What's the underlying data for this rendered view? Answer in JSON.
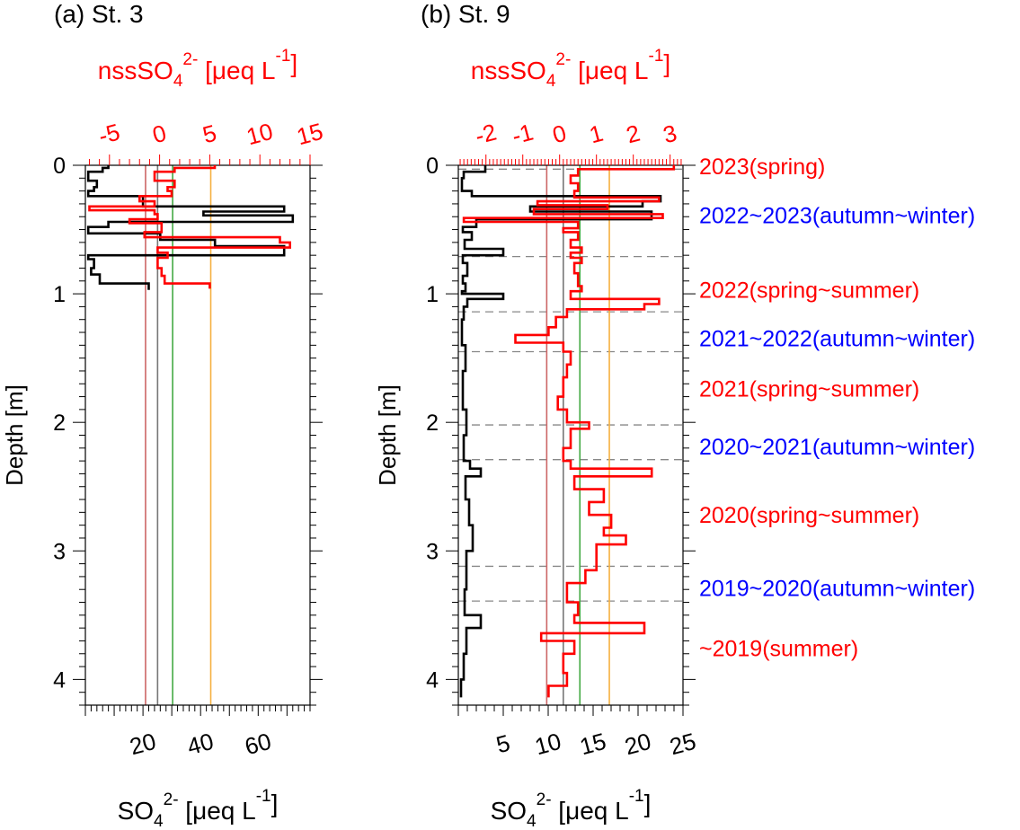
{
  "panels": [
    {
      "title": "(a) St. 3",
      "top_axis": {
        "label_main": "nssSO",
        "label_sub": "4",
        "label_sup": "2-",
        "label_unit": "[μeq L",
        "label_unit_sup": "-1",
        "label_close": "]",
        "ticks": [
          "-5",
          "0",
          "5",
          "10",
          "15"
        ],
        "range": [
          -7.4,
          15.0
        ]
      },
      "bottom_axis": {
        "label_main": "SO",
        "label_sub": "4",
        "label_sup": "2-",
        "label_unit": "[μeq L",
        "label_unit_sup": "-1",
        "label_close": "]",
        "ticks": [
          "20",
          "40",
          "60"
        ],
        "range": [
          0,
          78
        ]
      },
      "y_axis": {
        "label": "Depth [m]",
        "ticks": [
          "0",
          "1",
          "2",
          "3",
          "4"
        ],
        "range": [
          0,
          4.2
        ]
      }
    },
    {
      "title": "(b) St. 9",
      "top_axis": {
        "label_main": "nssSO",
        "label_sub": "4",
        "label_sup": "2-",
        "label_unit": "[μeq L",
        "label_unit_sup": "-1",
        "label_close": "]",
        "ticks": [
          "-2",
          "-1",
          "0",
          "1",
          "2",
          "3"
        ],
        "range": [
          -2.75,
          3.35
        ]
      },
      "bottom_axis": {
        "label_main": "SO",
        "label_sub": "4",
        "label_sup": "2-",
        "label_unit": "[μeq L",
        "label_unit_sup": "-1",
        "label_close": "]",
        "ticks": [
          "5",
          "10",
          "15",
          "20",
          "25"
        ],
        "range": [
          0,
          25
        ]
      },
      "y_axis": {
        "label": "Depth [m]",
        "ticks": [
          "0",
          "1",
          "2",
          "3",
          "4"
        ],
        "range": [
          0,
          4.2
        ]
      }
    }
  ],
  "season_labels": [
    {
      "text": "2023(spring)",
      "depth": 0.0,
      "color": "#ff0000"
    },
    {
      "text": "2022~2023(autumn~winter)",
      "depth": 0.38,
      "color": "#0000ff"
    },
    {
      "text": "2022(spring~summer)",
      "depth": 0.96,
      "color": "#ff0000"
    },
    {
      "text": "2021~2022(autumn~winter)",
      "depth": 1.34,
      "color": "#0000ff"
    },
    {
      "text": "2021(spring~summer)",
      "depth": 1.73,
      "color": "#ff0000"
    },
    {
      "text": "2020~2021(autumn~winter)",
      "depth": 2.18,
      "color": "#0000ff"
    },
    {
      "text": "2020(spring~summer)",
      "depth": 2.71,
      "color": "#ff0000"
    },
    {
      "text": "2019~2020(autumn~winter)",
      "depth": 3.28,
      "color": "#0000ff"
    },
    {
      "text": "~2019(summer)",
      "depth": 3.75,
      "color": "#ff0000"
    }
  ],
  "colors": {
    "so4": "#000000",
    "nss": "#ff0000",
    "ref_red": "#cc6666",
    "ref_gray": "#777777",
    "ref_green": "#44aa44",
    "ref_orange": "#f5b040",
    "dash": "#888888"
  },
  "chart_data": [
    {
      "type": "line",
      "title": "(a) St. 3",
      "ylabel": "Depth [m]",
      "ylim": [
        0,
        4.2
      ],
      "series": [
        {
          "name": "SO4 2-",
          "axis": "bottom",
          "steps": [
            [
              0,
              0.02,
              8
            ],
            [
              0.02,
              0.05,
              6
            ],
            [
              0.05,
              0.12,
              1
            ],
            [
              0.12,
              0.17,
              4
            ],
            [
              0.17,
              0.2,
              3
            ],
            [
              0.2,
              0.24,
              1
            ],
            [
              0.24,
              0.32,
              20
            ],
            [
              0.32,
              0.36,
              69
            ],
            [
              0.36,
              0.39,
              41
            ],
            [
              0.39,
              0.44,
              72
            ],
            [
              0.44,
              0.48,
              8
            ],
            [
              0.48,
              0.53,
              1
            ],
            [
              0.53,
              0.58,
              26
            ],
            [
              0.58,
              0.63,
              45
            ],
            [
              0.63,
              0.7,
              69
            ],
            [
              0.7,
              0.73,
              1
            ],
            [
              0.73,
              0.8,
              3
            ],
            [
              0.8,
              0.85,
              2
            ],
            [
              0.85,
              0.92,
              5
            ],
            [
              0.92,
              0.97,
              22
            ]
          ]
        },
        {
          "name": "nssSO4 2-",
          "axis": "top",
          "steps": [
            [
              0,
              0.02,
              5.5
            ],
            [
              0.02,
              0.05,
              1.5
            ],
            [
              0.05,
              0.12,
              -0.5
            ],
            [
              0.12,
              0.17,
              1.5
            ],
            [
              0.17,
              0.2,
              0.8
            ],
            [
              0.2,
              0.24,
              1.2
            ],
            [
              0.24,
              0.28,
              -2
            ],
            [
              0.28,
              0.32,
              -0.5
            ],
            [
              0.32,
              0.35,
              -7
            ],
            [
              0.35,
              0.38,
              -0.5
            ],
            [
              0.38,
              0.42,
              -0.2
            ],
            [
              0.42,
              0.45,
              -3
            ],
            [
              0.45,
              0.52,
              0.2
            ],
            [
              0.52,
              0.56,
              -1.5
            ],
            [
              0.56,
              0.6,
              12
            ],
            [
              0.6,
              0.64,
              13
            ],
            [
              0.64,
              0.68,
              -0.2
            ],
            [
              0.68,
              0.72,
              0.8
            ],
            [
              0.72,
              0.8,
              -0.2
            ],
            [
              0.8,
              0.86,
              0.2
            ],
            [
              0.86,
              0.92,
              0.5
            ],
            [
              0.92,
              0.96,
              5
            ]
          ]
        }
      ],
      "reference_lines": [
        {
          "axis": "top",
          "value": -1.4,
          "color": "#cc6666"
        },
        {
          "axis": "top",
          "value": -0.2,
          "color": "#777777"
        },
        {
          "axis": "top",
          "value": 1.3,
          "color": "#44aa44"
        },
        {
          "axis": "top",
          "value": 5.1,
          "color": "#f5b040"
        }
      ]
    },
    {
      "type": "line",
      "title": "(b) St. 9",
      "ylabel": "Depth [m]",
      "ylim": [
        0,
        4.2
      ],
      "dashed_boundaries": [
        0.03,
        0.71,
        1.14,
        1.45,
        2.02,
        2.29,
        3.12,
        3.39
      ],
      "series": [
        {
          "name": "SO4 2-",
          "axis": "bottom",
          "steps": [
            [
              0,
              0.05,
              3
            ],
            [
              0.05,
              0.1,
              0.6
            ],
            [
              0.1,
              0.2,
              0.4
            ],
            [
              0.2,
              0.24,
              1.5
            ],
            [
              0.24,
              0.28,
              22.5
            ],
            [
              0.28,
              0.32,
              20.5
            ],
            [
              0.32,
              0.36,
              8
            ],
            [
              0.36,
              0.42,
              21.5
            ],
            [
              0.42,
              0.48,
              2
            ],
            [
              0.48,
              0.52,
              0.5
            ],
            [
              0.52,
              0.58,
              1.5
            ],
            [
              0.58,
              0.65,
              0.7
            ],
            [
              0.65,
              0.7,
              5
            ],
            [
              0.7,
              0.76,
              0.5
            ],
            [
              0.76,
              0.86,
              1
            ],
            [
              0.86,
              0.92,
              0.5
            ],
            [
              0.92,
              0.98,
              0.8
            ],
            [
              0.98,
              1.0,
              0.4
            ],
            [
              1.0,
              1.04,
              5
            ],
            [
              1.04,
              1.1,
              1
            ],
            [
              1.1,
              1.2,
              0.6
            ],
            [
              1.2,
              1.4,
              0.4
            ],
            [
              1.4,
              1.6,
              0.8
            ],
            [
              1.6,
              1.9,
              0.5
            ],
            [
              1.9,
              2.1,
              0.9
            ],
            [
              2.1,
              2.3,
              0.6
            ],
            [
              2.3,
              2.36,
              1.3
            ],
            [
              2.36,
              2.42,
              2.5
            ],
            [
              2.42,
              2.6,
              0.8
            ],
            [
              2.6,
              2.8,
              1.2
            ],
            [
              2.8,
              3.0,
              1.6
            ],
            [
              3.0,
              3.3,
              0.9
            ],
            [
              3.3,
              3.5,
              0.7
            ],
            [
              3.5,
              3.6,
              2.5
            ],
            [
              3.6,
              3.8,
              0.9
            ],
            [
              3.8,
              4.0,
              0.6
            ],
            [
              4.0,
              4.14,
              0.3
            ]
          ]
        },
        {
          "name": "nssSO4 2-",
          "axis": "top",
          "steps": [
            [
              0,
              0.03,
              3.1
            ],
            [
              0.03,
              0.08,
              0.5
            ],
            [
              0.08,
              0.14,
              0.3
            ],
            [
              0.14,
              0.2,
              0.5
            ],
            [
              0.2,
              0.25,
              0.4
            ],
            [
              0.25,
              0.28,
              2.7
            ],
            [
              0.28,
              0.31,
              -0.6
            ],
            [
              0.31,
              0.34,
              1.3
            ],
            [
              0.34,
              0.38,
              -0.7
            ],
            [
              0.38,
              0.41,
              2.8
            ],
            [
              0.41,
              0.44,
              -2.6
            ],
            [
              0.44,
              0.49,
              0.5
            ],
            [
              0.49,
              0.52,
              0.1
            ],
            [
              0.52,
              0.58,
              0.5
            ],
            [
              0.58,
              0.64,
              0.3
            ],
            [
              0.64,
              0.68,
              0.6
            ],
            [
              0.68,
              0.72,
              0.3
            ],
            [
              0.72,
              0.76,
              0.6
            ],
            [
              0.76,
              0.84,
              0.4
            ],
            [
              0.84,
              0.94,
              0.5
            ],
            [
              0.94,
              0.98,
              0.6
            ],
            [
              0.98,
              1.04,
              0.3
            ],
            [
              1.04,
              1.08,
              2.7
            ],
            [
              1.08,
              1.12,
              2.3
            ],
            [
              1.12,
              1.18,
              0.2
            ],
            [
              1.18,
              1.26,
              -0.1
            ],
            [
              1.26,
              1.32,
              -0.3
            ],
            [
              1.32,
              1.38,
              -1.2
            ],
            [
              1.38,
              1.45,
              0.1
            ],
            [
              1.45,
              1.55,
              0.3
            ],
            [
              1.55,
              1.65,
              0.2
            ],
            [
              1.65,
              1.8,
              0.1
            ],
            [
              1.8,
              1.9,
              -0.05
            ],
            [
              1.9,
              2.0,
              0.2
            ],
            [
              2.0,
              2.05,
              0.8
            ],
            [
              2.05,
              2.2,
              0.3
            ],
            [
              2.2,
              2.3,
              0.1
            ],
            [
              2.3,
              2.36,
              0.3
            ],
            [
              2.36,
              2.42,
              2.5
            ],
            [
              2.42,
              2.52,
              0.4
            ],
            [
              2.52,
              2.62,
              1.2
            ],
            [
              2.62,
              2.72,
              0.8
            ],
            [
              2.72,
              2.82,
              1.4
            ],
            [
              2.82,
              2.88,
              1.2
            ],
            [
              2.88,
              2.95,
              1.8
            ],
            [
              2.95,
              3.05,
              1.0
            ],
            [
              3.05,
              3.15,
              1.0
            ],
            [
              3.15,
              3.25,
              0.7
            ],
            [
              3.25,
              3.4,
              0.2
            ],
            [
              3.4,
              3.5,
              0.5
            ],
            [
              3.5,
              3.56,
              0.4
            ],
            [
              3.56,
              3.64,
              2.3
            ],
            [
              3.64,
              3.7,
              -0.5
            ],
            [
              3.7,
              3.8,
              0.4
            ],
            [
              3.8,
              3.95,
              0.1
            ],
            [
              3.95,
              4.05,
              0.2
            ],
            [
              4.05,
              4.14,
              -0.3
            ]
          ]
        }
      ],
      "reference_lines": [
        {
          "axis": "top",
          "value": -0.35,
          "color": "#cc6666"
        },
        {
          "axis": "top",
          "value": 0.1,
          "color": "#777777"
        },
        {
          "axis": "top",
          "value": 0.55,
          "color": "#44aa44"
        },
        {
          "axis": "top",
          "value": 1.35,
          "color": "#f5b040"
        }
      ]
    }
  ]
}
